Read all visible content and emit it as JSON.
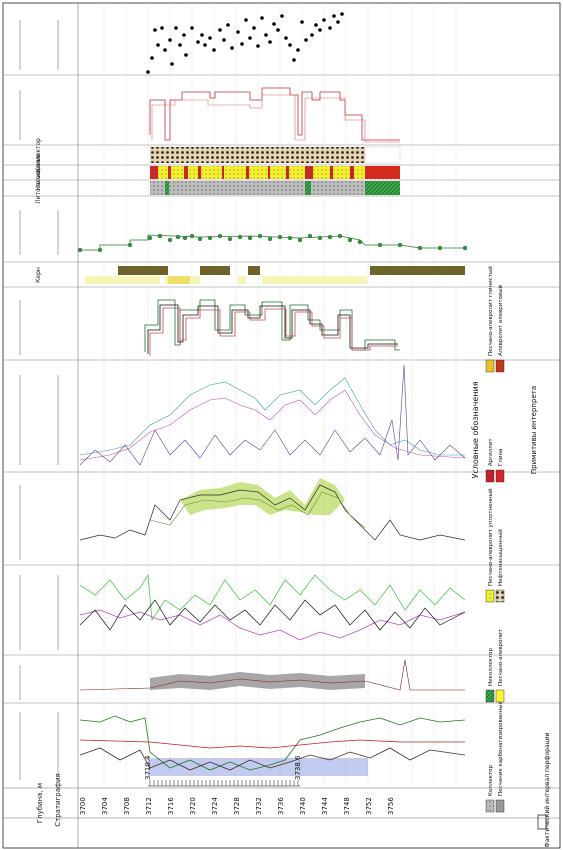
{
  "header": {
    "tracks": [
      {
        "id": "depth",
        "label": "Глубина, м"
      },
      {
        "id": "strat",
        "label": "Стратиграфия"
      },
      {
        "id": "lithology",
        "label": "Литология"
      },
      {
        "id": "collector",
        "label": "Коллектор"
      },
      {
        "id": "saturation",
        "label": "Насыщение"
      },
      {
        "id": "core",
        "label": "Керн"
      }
    ]
  },
  "depth_axis": {
    "ticks": [
      "3704",
      "3708",
      "3712",
      "3716",
      "3720",
      "3724",
      "3728",
      "3732",
      "3736",
      "3740",
      "3744",
      "3748",
      "3752",
      "3756"
    ],
    "first_tick": "3700"
  },
  "interval_labels": {
    "top": "3710.4",
    "bottom": "3738.6"
  },
  "legend": {
    "title": "Условные обозначения",
    "items": [
      {
        "label": "Коллектор",
        "color": "#b4b4b4",
        "pattern": "dots"
      },
      {
        "label": "Неколлектор",
        "color": "#3aa64a",
        "pattern": "hatch"
      },
      {
        "label": "Песчано-алевролит уплотненный",
        "color": "#f2ee4a",
        "pattern": "dots"
      },
      {
        "label": "Песчаник карбонатизированный",
        "color": "#9a9a9a",
        "pattern": "dots"
      },
      {
        "label": "Песчано-алевролит",
        "color": "#f7f43a",
        "pattern": "solid"
      },
      {
        "label": "Нефтенасыщенный",
        "color": "#e8d3ad",
        "pattern": "dots"
      },
      {
        "label": "Аргиллит",
        "color": "#c0202a",
        "pattern": "solid"
      },
      {
        "label": "Глина",
        "color": "#d1282b",
        "pattern": "solid"
      },
      {
        "label": "Песчано-алевролит глинистый",
        "color": "#e8c22c",
        "pattern": "stripe"
      },
      {
        "label": "Алевролит алевритовый",
        "color": "#c6361a",
        "pattern": "stripe"
      }
    ],
    "perf_title": "Примитивы интерпрета",
    "perf_label": "Фактический интервал перфорации"
  }
}
